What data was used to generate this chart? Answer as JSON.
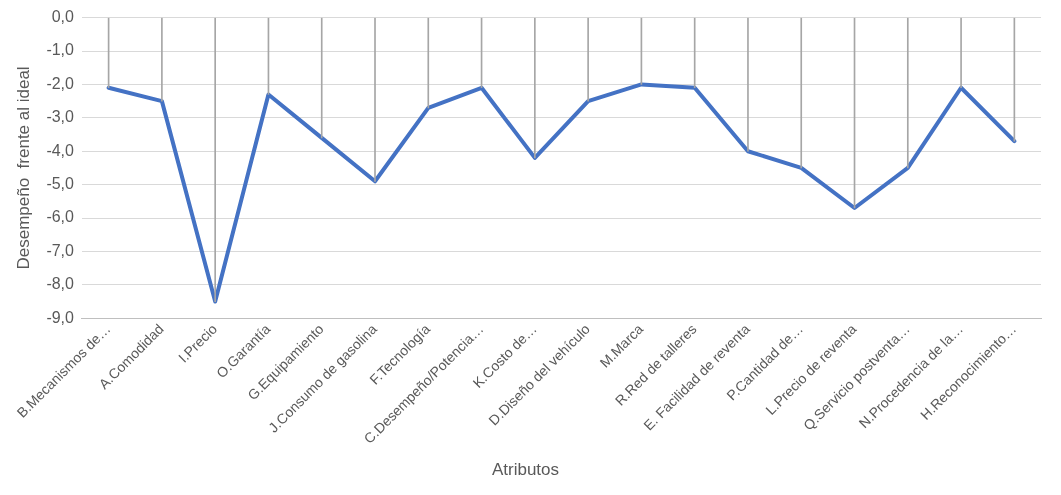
{
  "chart_data": {
    "type": "line",
    "ylabel": "Desempeño  frente al ideal",
    "xlabel": "Atributos",
    "categories": [
      "B.Mecanismos de…",
      "A.Comodidad",
      "I.Precio",
      "O.Garantía",
      "G.Equipamiento",
      "J.Consumo de gasolina",
      "F.Tecnología",
      "C.Desempeño/Potencia…",
      "K.Costo de…",
      "D.Diseño del vehículo",
      "M.Marca",
      "R.Red de talleres",
      "E. Facilidad de reventa",
      "P.Cantidad de…",
      "L.Precio de reventa",
      "Q.Servicio postventa…",
      "N.Procedencia de la…",
      "H.Reconocimiento…"
    ],
    "series": [
      {
        "type": "bar",
        "color": "#a6a6a6",
        "values": [
          -2.1,
          -2.5,
          -8.5,
          -2.3,
          -3.6,
          -4.9,
          -2.7,
          -2.1,
          -4.2,
          -2.5,
          -2.0,
          -2.1,
          -4.0,
          -4.5,
          -5.7,
          -4.5,
          -2.1,
          -3.7
        ]
      },
      {
        "color": "#4472c4",
        "values": [
          -2.1,
          -2.5,
          -8.5,
          -2.3,
          -3.6,
          -4.9,
          -2.7,
          -2.1,
          -4.2,
          -2.5,
          -2.0,
          -2.1,
          -4.0,
          -4.5,
          -5.7,
          -4.5,
          -2.1,
          -3.7
        ]
      }
    ],
    "ylim": [
      -9,
      0
    ],
    "yticks": [
      {
        "value": 0,
        "label": "0,0"
      },
      {
        "value": -1,
        "label": "-1,0"
      },
      {
        "value": -2,
        "label": "-2,0"
      },
      {
        "value": -3,
        "label": "-3,0"
      },
      {
        "value": -4,
        "label": "-4,0"
      },
      {
        "value": -5,
        "label": "-5,0"
      },
      {
        "value": -6,
        "label": "-6,0"
      },
      {
        "value": -7,
        "label": "-7,0"
      },
      {
        "value": -8,
        "label": "-8,0"
      },
      {
        "value": -9,
        "label": "-9,0"
      }
    ],
    "grid": "y",
    "legend": false,
    "marker": "none",
    "line_style": "solid"
  }
}
